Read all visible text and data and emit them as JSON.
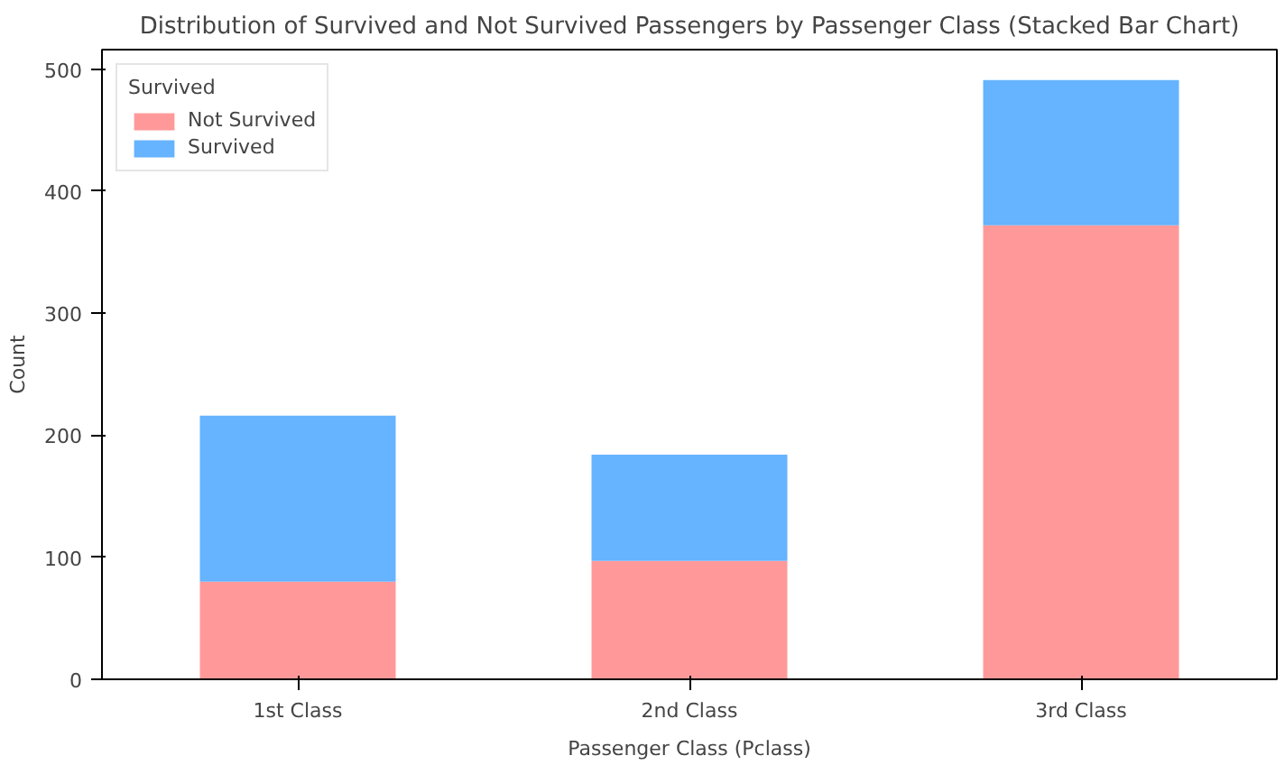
{
  "chart_data": {
    "type": "bar",
    "title": "Distribution of Survived and Not Survived Passengers by Passenger Class (Stacked Bar Chart)",
    "xlabel": "Passenger Class (Pclass)",
    "ylabel": "Count",
    "legend_title": "Survived",
    "categories": [
      "1st Class",
      "2nd Class",
      "3rd Class"
    ],
    "series": [
      {
        "name": "Not Survived",
        "color": "#ff9999",
        "values": [
          80,
          97,
          372
        ]
      },
      {
        "name": "Survived",
        "color": "#66b3ff",
        "values": [
          136,
          87,
          119
        ]
      }
    ],
    "stacked": true,
    "ylim": [
      0,
      516
    ],
    "yticks": [
      0,
      100,
      200,
      300,
      400,
      500
    ],
    "grid": false,
    "legend": "top left"
  }
}
